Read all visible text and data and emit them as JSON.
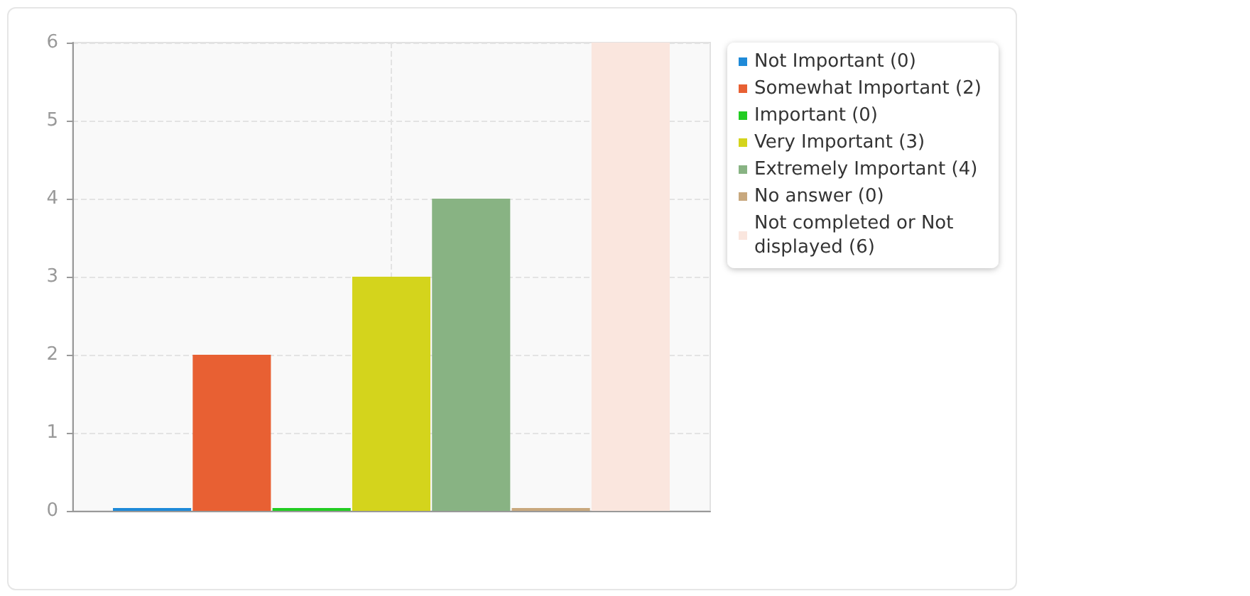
{
  "chart_data": {
    "type": "bar",
    "categories": [
      null
    ],
    "series": [
      {
        "name": "Not Important (0)",
        "color": "#1f8ad8",
        "values": [
          0
        ]
      },
      {
        "name": "Somewhat Important (2)",
        "color": "#e86033",
        "values": [
          2
        ]
      },
      {
        "name": "Important (0)",
        "color": "#22cc22",
        "values": [
          0
        ]
      },
      {
        "name": "Very Important (3)",
        "color": "#d4d41c",
        "values": [
          3
        ]
      },
      {
        "name": "Extremely Important (4)",
        "color": "#88b383",
        "values": [
          4
        ]
      },
      {
        "name": "No answer (0)",
        "color": "#c8a87e",
        "values": [
          0
        ]
      },
      {
        "name": "Not completed or Not displayed (6)",
        "color": "#fae6de",
        "values": [
          6
        ]
      }
    ],
    "ylim": [
      0,
      6
    ],
    "yticks": [
      0,
      1,
      2,
      3,
      4,
      5,
      6
    ],
    "grid": true,
    "legend": "top right"
  }
}
